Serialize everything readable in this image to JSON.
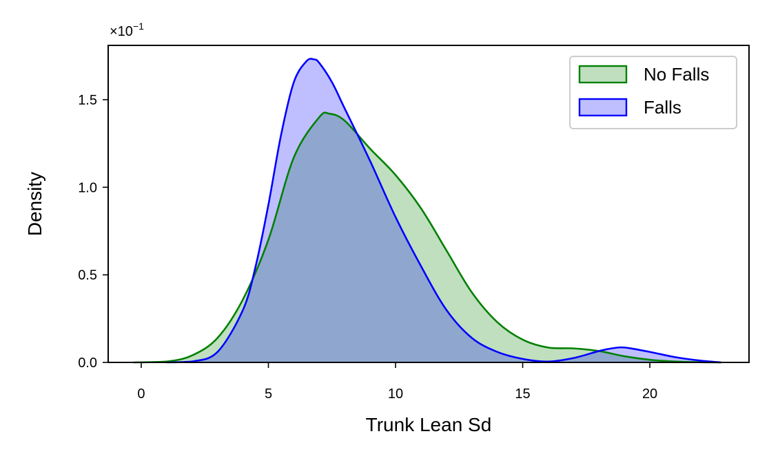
{
  "chart_data": {
    "type": "area",
    "title": "",
    "xlabel": "Trunk Lean Sd",
    "ylabel": "Density",
    "scale_label_base": "×10",
    "scale_label_exp": "−1",
    "xlim": [
      -1.3,
      23.9
    ],
    "ylim": [
      0,
      1.81
    ],
    "x_ticks": [
      0,
      5,
      10,
      15,
      20
    ],
    "x_tick_labels": [
      "0",
      "5",
      "10",
      "15",
      "20"
    ],
    "y_ticks": [
      0,
      0.5,
      1.0,
      1.5
    ],
    "y_tick_labels": [
      "0.0",
      "0.5",
      "1.0",
      "1.5"
    ],
    "grid": false,
    "legend_position": "top-right",
    "series": [
      {
        "name": "No Falls",
        "stroke": "#008000",
        "fill": "#008000",
        "fill_opacity": 0.25,
        "x": [
          -0.3,
          1,
          2,
          3,
          4,
          5,
          6,
          7,
          7.4,
          8,
          9,
          10,
          11,
          12,
          13,
          14,
          15,
          16,
          17,
          18,
          19,
          20,
          21,
          22,
          22.8
        ],
        "y": [
          0,
          0.005,
          0.04,
          0.14,
          0.36,
          0.7,
          1.17,
          1.4,
          1.42,
          1.38,
          1.22,
          1.07,
          0.88,
          0.64,
          0.4,
          0.23,
          0.13,
          0.085,
          0.08,
          0.065,
          0.035,
          0.015,
          0.005,
          0.001,
          0
        ]
      },
      {
        "name": "Falls",
        "stroke": "#0000ff",
        "fill": "#0000ff",
        "fill_opacity": 0.25,
        "x": [
          1,
          2,
          3,
          4,
          4.5,
          5,
          5.5,
          6,
          6.5,
          6.8,
          7,
          7.5,
          8,
          9,
          10,
          11,
          12,
          13,
          14,
          15,
          16,
          17,
          18,
          18.5,
          19,
          20,
          21,
          22,
          22.8
        ],
        "y": [
          0,
          0.005,
          0.06,
          0.3,
          0.55,
          0.9,
          1.3,
          1.6,
          1.72,
          1.73,
          1.71,
          1.6,
          1.45,
          1.15,
          0.83,
          0.55,
          0.3,
          0.14,
          0.06,
          0.02,
          0.005,
          0.025,
          0.065,
          0.08,
          0.085,
          0.06,
          0.03,
          0.01,
          0
        ]
      }
    ]
  }
}
